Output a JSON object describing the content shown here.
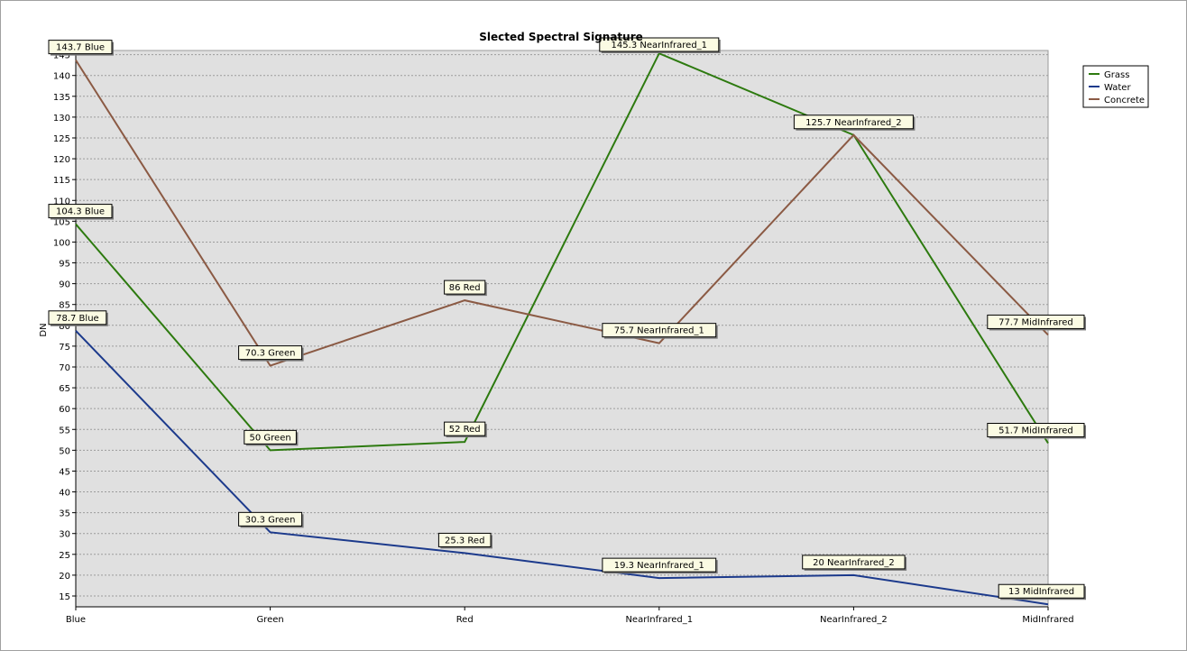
{
  "chart_data": {
    "type": "line",
    "title": "Slected Spectral Signature",
    "xlabel": "",
    "ylabel": "DN",
    "categories": [
      "Blue",
      "Green",
      "Red",
      "NearInfrared_1",
      "NearInfrared_2",
      "MidInfrared"
    ],
    "ylim": [
      12.4,
      146
    ],
    "y_ticks": [
      15,
      20,
      25,
      30,
      35,
      40,
      45,
      50,
      55,
      60,
      65,
      70,
      75,
      80,
      85,
      90,
      95,
      100,
      105,
      110,
      115,
      120,
      125,
      130,
      135,
      140,
      145
    ],
    "grid": true,
    "legend_position": "top-right",
    "series": [
      {
        "name": "Grass",
        "color": "#2d7a0f",
        "values": [
          104.3,
          50,
          52,
          145.3,
          125.7,
          51.7
        ],
        "labels": [
          "104.3 Blue",
          "50 Green",
          "52 Red",
          "145.3 NearInfrared_1",
          "125.7 NearInfrared_2",
          "51.7 MidInfrared"
        ]
      },
      {
        "name": "Water",
        "color": "#1c3a8c",
        "values": [
          78.7,
          30.3,
          25.3,
          19.3,
          20,
          13
        ],
        "labels": [
          "78.7 Blue",
          "30.3 Green",
          "25.3 Red",
          "19.3 NearInfrared_1",
          "20 NearInfrared_2",
          "13 MidInfrared"
        ]
      },
      {
        "name": "Concrete",
        "color": "#8b5a44",
        "values": [
          143.7,
          70.3,
          86,
          75.7,
          125.7,
          77.7
        ],
        "labels": [
          "143.7 Blue",
          "70.3 Green",
          "86 Red",
          "75.7 NearInfrared_1",
          null,
          "77.7 MidInfrared"
        ]
      }
    ]
  }
}
